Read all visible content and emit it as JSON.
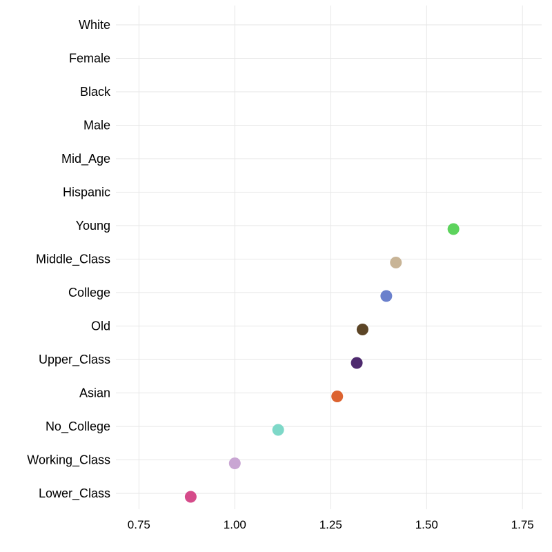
{
  "chart_data": {
    "type": "scatter",
    "title": "",
    "xlabel": "",
    "ylabel": "",
    "xlim": [
      0.69,
      1.8
    ],
    "x_ticks": [
      "0.75",
      "1.00",
      "1.25",
      "1.50",
      "1.75"
    ],
    "x_tick_values": [
      0.75,
      1.0,
      1.25,
      1.5,
      1.75
    ],
    "grid": true,
    "legend": "none",
    "categories": [
      "White",
      "Female",
      "Black",
      "Male",
      "Mid_Age",
      "Hispanic",
      "Young",
      "Middle_Class",
      "College",
      "Old",
      "Upper_Class",
      "Asian",
      "No_College",
      "Working_Class",
      "Lower_Class"
    ],
    "points": [
      {
        "category": "Young",
        "x": 1.57,
        "color": "#5dd35d"
      },
      {
        "category": "Middle_Class",
        "x": 1.42,
        "color": "#c8b496"
      },
      {
        "category": "College",
        "x": 1.395,
        "color": "#6a80cc"
      },
      {
        "category": "Old",
        "x": 1.333,
        "color": "#5c4526"
      },
      {
        "category": "Upper_Class",
        "x": 1.318,
        "color": "#4e2a6e"
      },
      {
        "category": "Asian",
        "x": 1.267,
        "color": "#dc6330"
      },
      {
        "category": "No_College",
        "x": 1.113,
        "color": "#7ed8c8"
      },
      {
        "category": "Working_Class",
        "x": 1.0,
        "color": "#c9a6d3"
      },
      {
        "category": "Lower_Class",
        "x": 0.885,
        "color": "#d54b8a"
      }
    ]
  }
}
